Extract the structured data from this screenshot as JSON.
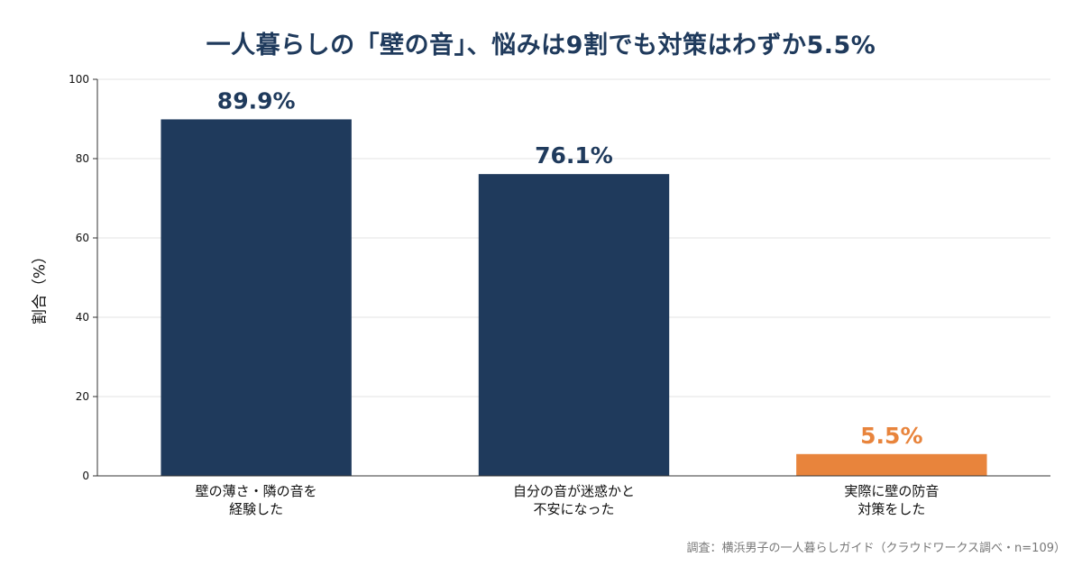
{
  "chart_data": {
    "type": "bar",
    "title": "一人暮らしの「壁の音」、悩みは9割でも対策はわずか5.5%",
    "ylabel": "割合（%）",
    "xlabel": "",
    "ylim": [
      0,
      100
    ],
    "yticks": [
      0,
      20,
      40,
      60,
      80,
      100
    ],
    "grid": true,
    "categories": [
      [
        "壁の薄さ・隣の音を",
        "経験した"
      ],
      [
        "自分の音が迷惑かと",
        "不安になった"
      ],
      [
        "実際に壁の防音",
        "対策をした"
      ]
    ],
    "values": [
      89.9,
      76.1,
      5.5
    ],
    "value_labels": [
      "89.9%",
      "76.1%",
      "5.5%"
    ],
    "colors": [
      "#1f3a5c",
      "#1f3a5c",
      "#e8843c"
    ],
    "source": "調査：横浜男子の一人暮らしガイド（クラウドワークス調べ・n=109）"
  }
}
